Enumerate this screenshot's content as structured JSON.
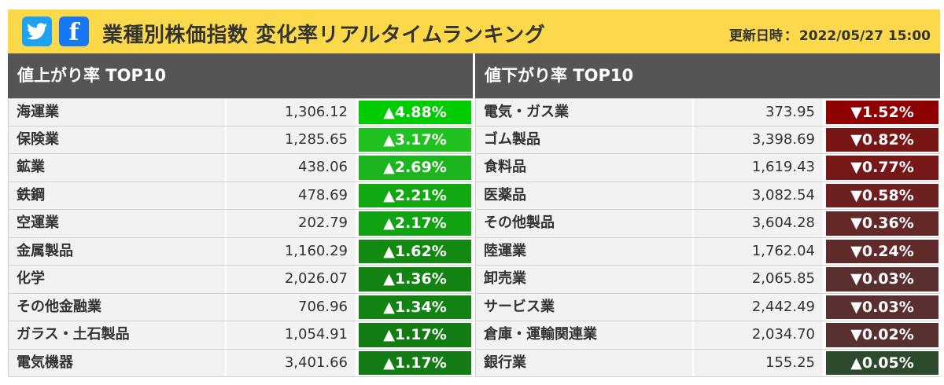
{
  "header": {
    "twitter_icon": "twitter-bird-icon",
    "facebook_icon": "facebook-f-icon",
    "title": "業種別株価指数 変化率リアルタイムランキング",
    "updated_label": "更新日時",
    "updated_value": "2022/05/27 15:00"
  },
  "gainers": {
    "heading": "値上がり率 TOP10",
    "rows": [
      {
        "name": "海運業",
        "price": "1,306.12",
        "rate": "▲4.88%",
        "color": "#00cc00"
      },
      {
        "name": "保険業",
        "price": "1,285.65",
        "rate": "▲3.17%",
        "color": "#1fc21f"
      },
      {
        "name": "鉱業",
        "price": "438.06",
        "rate": "▲2.69%",
        "color": "#1db51d"
      },
      {
        "name": "鉄鋼",
        "price": "478.69",
        "rate": "▲2.21%",
        "color": "#12a812"
      },
      {
        "name": "空運業",
        "price": "202.79",
        "rate": "▲2.17%",
        "color": "#12a312"
      },
      {
        "name": "金属製品",
        "price": "1,160.29",
        "rate": "▲1.62%",
        "color": "#128a12"
      },
      {
        "name": "化学",
        "price": "2,026.07",
        "rate": "▲1.36%",
        "color": "#138313"
      },
      {
        "name": "その他金融業",
        "price": "706.96",
        "rate": "▲1.34%",
        "color": "#138313"
      },
      {
        "name": "ガラス・土石製品",
        "price": "1,054.91",
        "rate": "▲1.17%",
        "color": "#147c14"
      },
      {
        "name": "電気機器",
        "price": "3,401.66",
        "rate": "▲1.17%",
        "color": "#147c14"
      }
    ]
  },
  "losers": {
    "heading": "値下がり率 TOP10",
    "rows": [
      {
        "name": "電気・ガス業",
        "price": "373.95",
        "rate": "▼1.52%",
        "color": "#8f0000"
      },
      {
        "name": "ゴム製品",
        "price": "3,398.69",
        "rate": "▼0.82%",
        "color": "#781616"
      },
      {
        "name": "食料品",
        "price": "1,619.43",
        "rate": "▼0.77%",
        "color": "#761818"
      },
      {
        "name": "医薬品",
        "price": "3,082.54",
        "rate": "▼0.58%",
        "color": "#6d2020"
      },
      {
        "name": "その他製品",
        "price": "3,604.28",
        "rate": "▼0.36%",
        "color": "#642828"
      },
      {
        "name": "陸運業",
        "price": "1,762.04",
        "rate": "▼0.24%",
        "color": "#612b2b"
      },
      {
        "name": "卸売業",
        "price": "2,065.85",
        "rate": "▼0.03%",
        "color": "#5a2f2f"
      },
      {
        "name": "サービス業",
        "price": "2,442.49",
        "rate": "▼0.03%",
        "color": "#5a2f2f"
      },
      {
        "name": "倉庫・運輸関連業",
        "price": "2,034.70",
        "rate": "▼0.02%",
        "color": "#583030"
      },
      {
        "name": "銀行業",
        "price": "155.25",
        "rate": "▲0.05%",
        "color": "#2d4a2d"
      }
    ]
  }
}
